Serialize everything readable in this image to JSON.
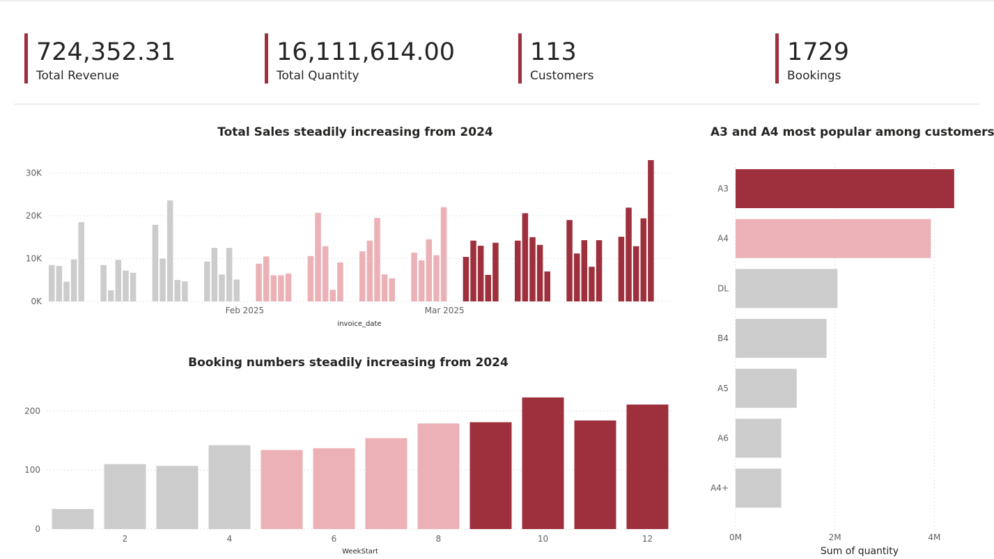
{
  "colors": {
    "accent": "#9e2f3c",
    "pink": "#ebb1b6",
    "grey": "#cccccc"
  },
  "kpis": [
    {
      "value": "724,352.31",
      "label": "Total Revenue"
    },
    {
      "value": "16,111,614.00",
      "label": "Total Quantity"
    },
    {
      "value": "113",
      "label": "Customers"
    },
    {
      "value": "1729",
      "label": "Bookings"
    }
  ],
  "chart_data": [
    {
      "type": "bar",
      "title": "Total Sales steadily increasing from 2024",
      "xlabel": "invoice_date",
      "ylabel": "",
      "ylim": [
        0,
        33000
      ],
      "yticks": [
        {
          "value": 0,
          "label": "0K"
        },
        {
          "value": 10000,
          "label": "10K"
        },
        {
          "value": 20000,
          "label": "20K"
        },
        {
          "value": 30000,
          "label": "30K"
        }
      ],
      "xticks": [
        {
          "label": "Feb 2025",
          "group": 3,
          "index": 5.5
        },
        {
          "label": "Mar 2025",
          "group": 7,
          "index": 4.5
        }
      ],
      "grid": "horizontal dotted",
      "weeks": [
        {
          "color": "grey",
          "values": [
            8500,
            8300,
            4600,
            9800,
            18500
          ]
        },
        {
          "color": "grey",
          "values": [
            8500,
            2600,
            9700,
            7200,
            6700
          ]
        },
        {
          "color": "grey",
          "values": [
            17900,
            10000,
            23600,
            5000,
            4700
          ]
        },
        {
          "color": "grey",
          "values": [
            9300,
            12500,
            6300,
            12500,
            5100
          ]
        },
        {
          "color": "pink",
          "values": [
            8800,
            10500,
            6100,
            6100,
            6500
          ]
        },
        {
          "color": "pink",
          "values": [
            10600,
            20700,
            12900,
            2700,
            9100
          ]
        },
        {
          "color": "pink",
          "values": [
            11700,
            14200,
            19500,
            6300,
            5400
          ]
        },
        {
          "color": "pink",
          "values": [
            11400,
            9600,
            14500,
            10800,
            22000
          ]
        },
        {
          "color": "accent",
          "values": [
            10400,
            14200,
            13000,
            6200,
            13700
          ]
        },
        {
          "color": "accent",
          "values": [
            14200,
            20600,
            15000,
            13200,
            7000
          ]
        },
        {
          "color": "accent",
          "values": [
            19000,
            11200,
            14300,
            8100,
            14300
          ]
        },
        {
          "color": "accent",
          "values": [
            15100,
            21900,
            12900,
            19400,
            33000
          ]
        }
      ]
    },
    {
      "type": "bar",
      "title": "Booking numbers steadily increasing from 2024",
      "xlabel": "WeekStart",
      "ylabel": "",
      "ylim": [
        0,
        230
      ],
      "yticks": [
        0,
        100,
        200
      ],
      "x": [
        1,
        2,
        3,
        4,
        5,
        6,
        7,
        8,
        9,
        10,
        11,
        12
      ],
      "xticks": [
        2,
        4,
        6,
        8,
        10,
        12
      ],
      "values": [
        34,
        110,
        107,
        142,
        134,
        137,
        154,
        179,
        181,
        223,
        184,
        211
      ],
      "colors": [
        "grey",
        "grey",
        "grey",
        "grey",
        "pink",
        "pink",
        "pink",
        "pink",
        "accent",
        "accent",
        "accent",
        "accent"
      ],
      "grid": "horizontal dotted"
    },
    {
      "type": "bar",
      "orientation": "horizontal",
      "title": "A3 and A4 most popular among customers",
      "xlabel": "Sum of quantity",
      "ylabel": "",
      "xlim": [
        0,
        4500000
      ],
      "xticks": [
        {
          "value": 0,
          "label": "0M"
        },
        {
          "value": 2000000,
          "label": "2M"
        },
        {
          "value": 4000000,
          "label": "4M"
        }
      ],
      "categories": [
        "A3",
        "A4",
        "DL",
        "B4",
        "A5",
        "A6",
        "A4+"
      ],
      "values": [
        4400000,
        3930000,
        2050000,
        1830000,
        1230000,
        920000,
        920000
      ],
      "colors": [
        "accent",
        "pink",
        "grey",
        "grey",
        "grey",
        "grey",
        "grey"
      ],
      "grid": "vertical dotted"
    }
  ]
}
